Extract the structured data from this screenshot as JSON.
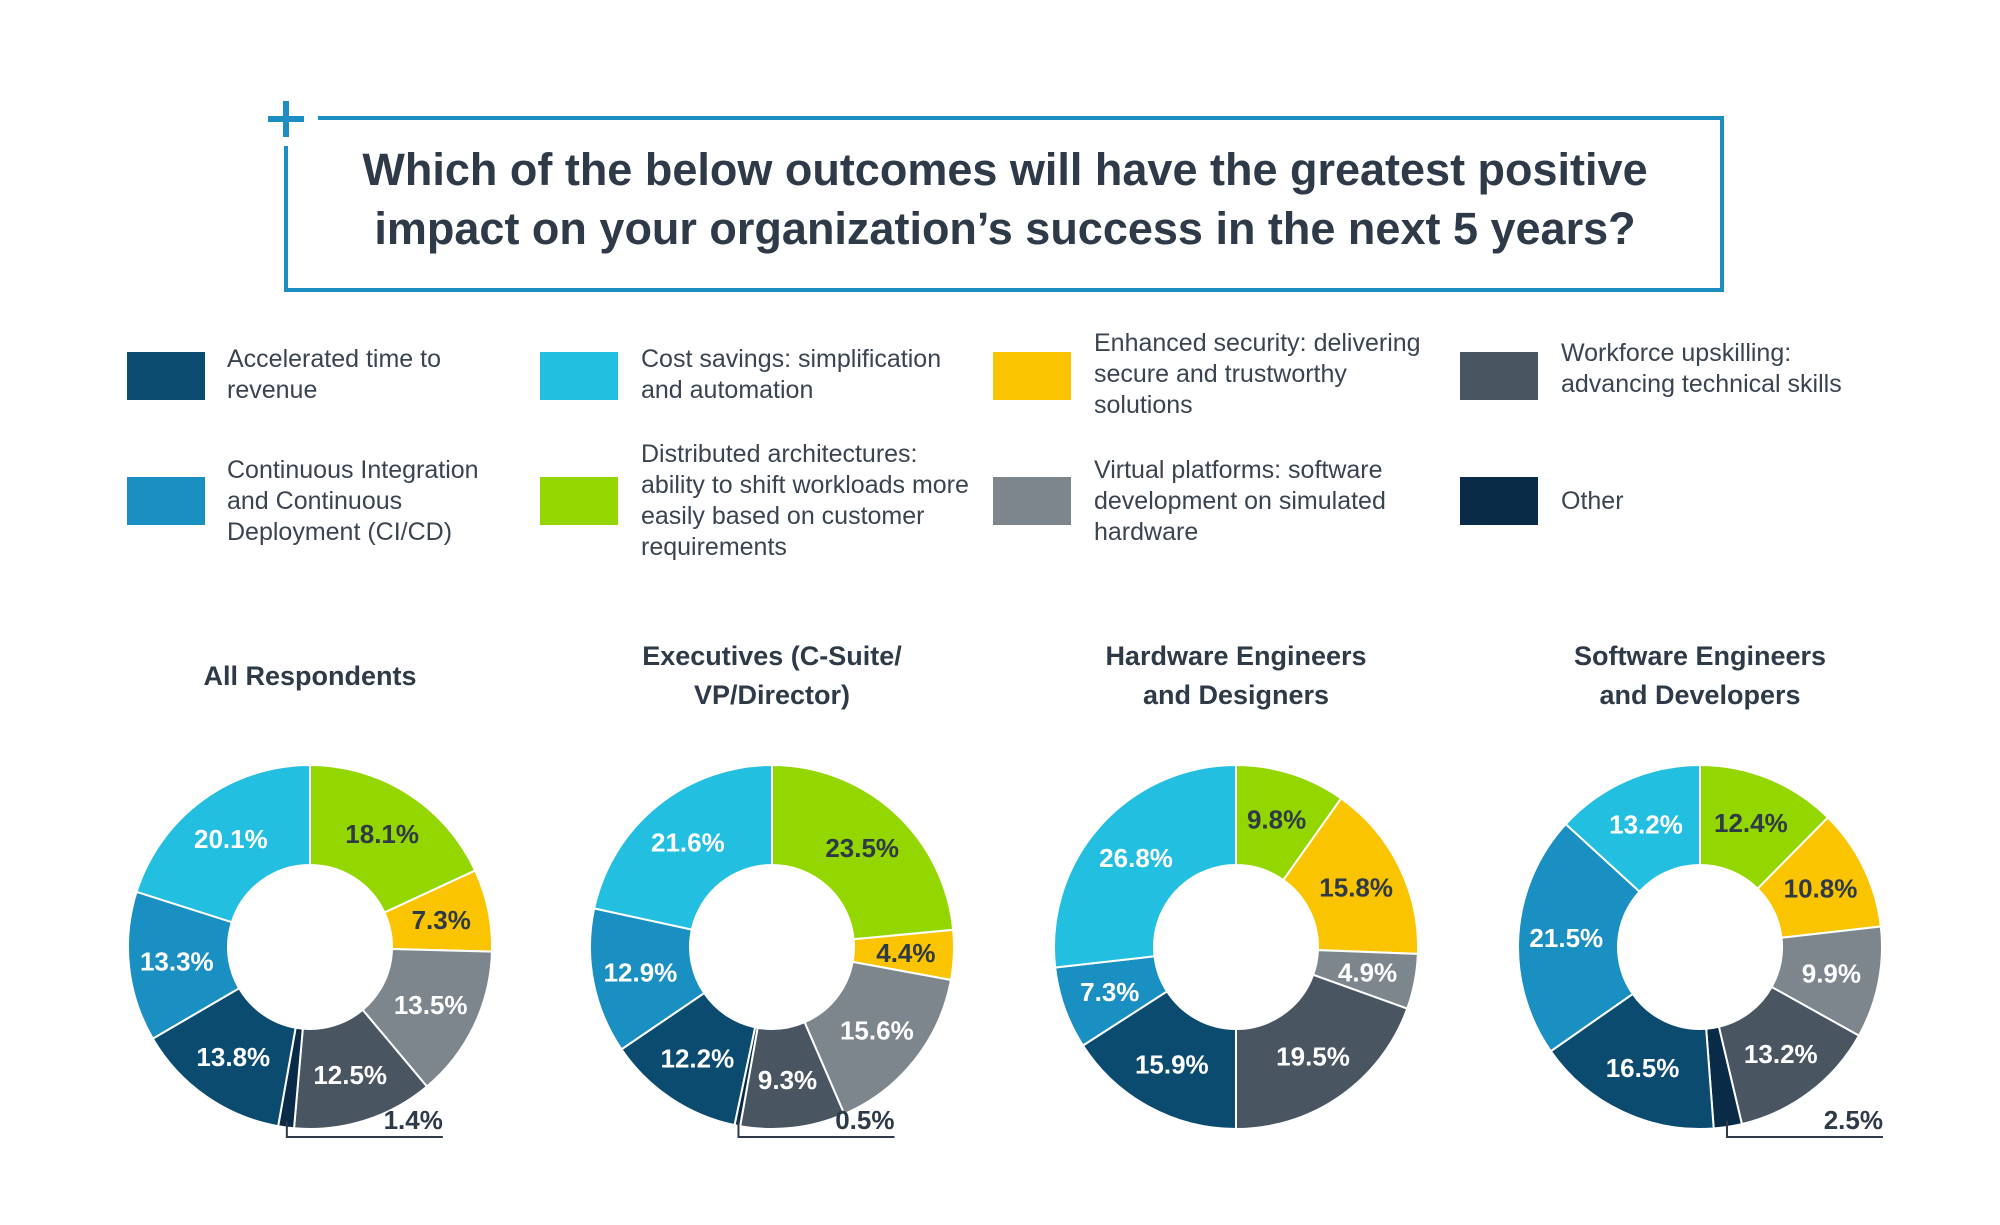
{
  "title": "Which of the below outcomes will have the greatest positive impact on your organization’s success in the next 5 years?",
  "colors": {
    "accent": "#1c8ec2",
    "text_dark": "#2e3a47"
  },
  "legend": [
    {
      "label": "Accelerated time to revenue",
      "color": "#0b4b70"
    },
    {
      "label": "Cost savings: simplification and automation",
      "color": "#23bfe0"
    },
    {
      "label": "Enhanced security: delivering secure and trustworthy solutions",
      "color": "#fbc400"
    },
    {
      "label": "Workforce upskilling: advancing technical skills",
      "color": "#4a5562"
    },
    {
      "label": "Continuous Integration and Continuous Deployment (CI/CD)",
      "color": "#1a8fc1"
    },
    {
      "label": "Distributed architectures: ability to shift workloads more easily based on customer requirements",
      "color": "#94d600"
    },
    {
      "label": "Virtual platforms: software development on simulated hardware",
      "color": "#7e868d"
    },
    {
      "label": "Other",
      "color": "#0a2b47"
    }
  ],
  "chart_data": [
    {
      "type": "pie",
      "title": "All Respondents",
      "categories": [
        "Distributed architectures",
        "Enhanced security",
        "Virtual platforms",
        "Workforce upskilling",
        "Other",
        "Accelerated time to revenue",
        "Continuous Integration and Continuous Deployment (CI/CD)",
        "Cost savings"
      ],
      "values": [
        18.1,
        7.3,
        13.5,
        12.5,
        1.4,
        13.8,
        13.3,
        20.1
      ],
      "labels": [
        "18.1%",
        "7.3%",
        "13.5%",
        "12.5%",
        "1.4%",
        "13.8%",
        "13.3%",
        "20.1%"
      ]
    },
    {
      "type": "pie",
      "title": "Executives (C-Suite/ VP/Director)",
      "categories": [
        "Distributed architectures",
        "Enhanced security",
        "Virtual platforms",
        "Workforce upskilling",
        "Other",
        "Accelerated time to revenue",
        "Continuous Integration and Continuous Deployment (CI/CD)",
        "Cost savings"
      ],
      "values": [
        23.5,
        4.4,
        15.6,
        9.3,
        0.5,
        12.2,
        12.9,
        21.6
      ],
      "labels": [
        "23.5%",
        "4.4%",
        "15.6%",
        "9.3%",
        "0.5%",
        "12.2%",
        "12.9%",
        "21.6%"
      ]
    },
    {
      "type": "pie",
      "title": "Hardware Engineers and Designers",
      "categories": [
        "Distributed architectures",
        "Enhanced security",
        "Virtual platforms",
        "Workforce upskilling",
        "Accelerated time to revenue",
        "Continuous Integration and Continuous Deployment (CI/CD)",
        "Cost savings"
      ],
      "values": [
        9.8,
        15.8,
        4.9,
        19.5,
        15.9,
        7.3,
        26.8
      ],
      "labels": [
        "9.8%",
        "15.8%",
        "4.9%",
        "19.5%",
        "15.9%",
        "7.3%",
        "26.8%"
      ]
    },
    {
      "type": "pie",
      "title": "Software Engineers and Developers",
      "categories": [
        "Distributed architectures",
        "Enhanced security",
        "Virtual platforms",
        "Workforce upskilling",
        "Other",
        "Accelerated time to revenue",
        "Continuous Integration and Continuous Deployment (CI/CD)",
        "Cost savings"
      ],
      "values": [
        12.4,
        10.8,
        9.9,
        13.2,
        2.5,
        16.5,
        21.5,
        13.2
      ],
      "labels": [
        "12.4%",
        "10.8%",
        "9.9%",
        "13.2%",
        "2.5%",
        "16.5%",
        "21.5%",
        "13.2%"
      ]
    }
  ]
}
